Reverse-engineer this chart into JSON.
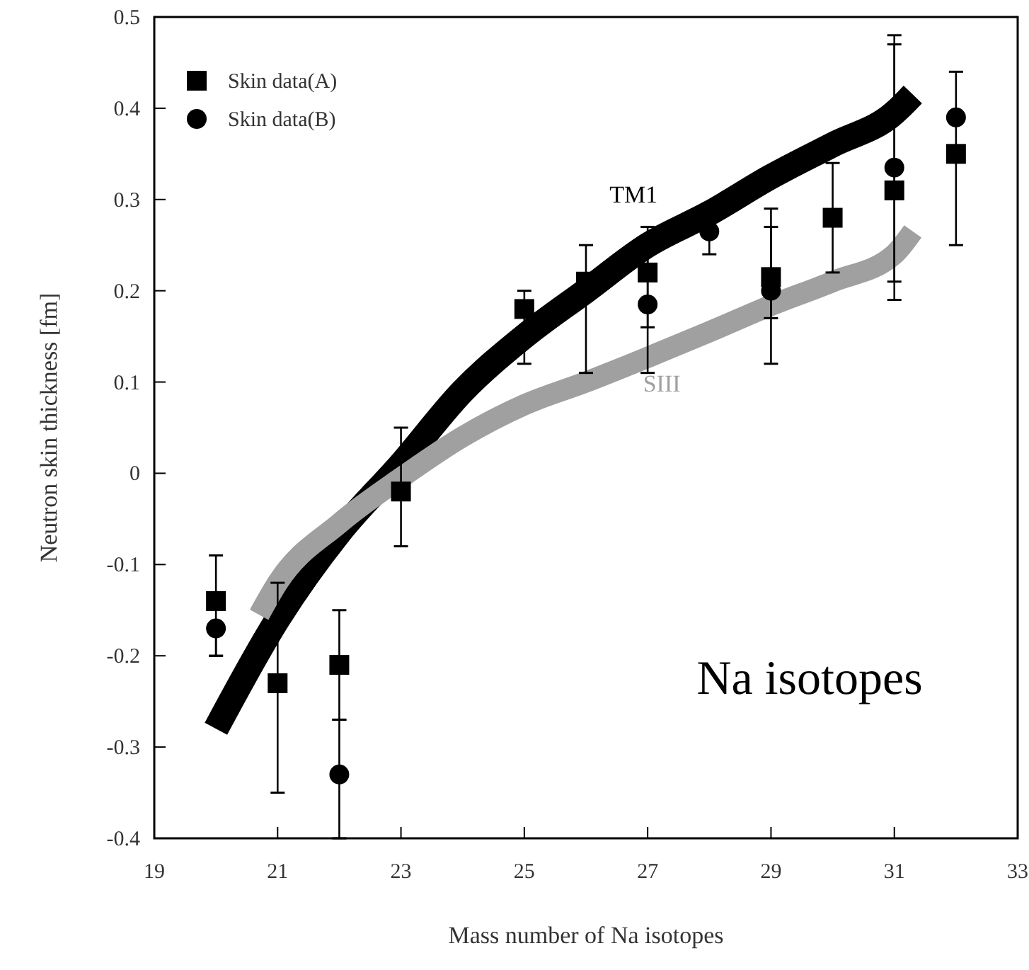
{
  "chart_data": {
    "type": "scatter",
    "xlabel": "Mass number of Na isotopes",
    "ylabel": "Neutron skin thickness  [fm]",
    "xlim": [
      19,
      33
    ],
    "xticks": [
      19,
      21,
      23,
      25,
      27,
      29,
      31,
      33
    ],
    "ylim": [
      -0.4,
      0.5
    ],
    "yticks": [
      -0.4,
      -0.3,
      -0.2,
      -0.1,
      0,
      0.1,
      0.2,
      0.3,
      0.4,
      0.5
    ],
    "legend": "top left",
    "grid": false,
    "annotations": [
      "Na isotopes"
    ],
    "series": [
      {
        "type": "line",
        "name": "TM1",
        "color": "#000000",
        "x": [
          20,
          21,
          22,
          23,
          24,
          25,
          26,
          27,
          28,
          29,
          30,
          31,
          31.3
        ],
        "values": [
          -0.28,
          -0.16,
          -0.065,
          0.01,
          0.09,
          0.15,
          0.2,
          0.25,
          0.285,
          0.325,
          0.36,
          0.395,
          0.415
        ]
      },
      {
        "type": "line",
        "name": "SIII",
        "color": "#a0a0a0",
        "x": [
          20.7,
          21,
          22,
          23,
          24,
          25,
          26,
          27,
          28,
          29,
          30,
          31,
          31.3
        ],
        "values": [
          -0.155,
          -0.12,
          -0.055,
          -0.005,
          0.04,
          0.075,
          0.1,
          0.127,
          0.155,
          0.184,
          0.21,
          0.24,
          0.265
        ]
      },
      {
        "type": "scatter",
        "name": "Skin data(A)",
        "color": "#000000",
        "marker": "square",
        "x": [
          20,
          21,
          22,
          23,
          25,
          26,
          27,
          28,
          29,
          30,
          31,
          32
        ],
        "values": [
          -0.14,
          -0.23,
          -0.21,
          -0.02,
          0.18,
          0.21,
          0.22,
          null,
          0.215,
          0.28,
          0.31,
          0.35
        ],
        "errors": [
          [
            -0.2,
            -0.09
          ],
          [
            -0.35,
            -0.12
          ],
          [
            -0.27,
            -0.15
          ],
          [
            -0.08,
            0.05
          ],
          [
            0.12,
            0.2
          ],
          [
            0.11,
            0.25
          ],
          [
            0.16,
            0.27
          ],
          null,
          [
            0.12,
            0.29
          ],
          [
            0.22,
            0.34
          ],
          [
            0.19,
            0.48
          ],
          [
            0.25,
            0.44
          ]
        ]
      },
      {
        "type": "scatter",
        "name": "Skin data(B)",
        "color": "#000000",
        "marker": "circle",
        "x": [
          20,
          22,
          27,
          28,
          29,
          31,
          32
        ],
        "values": [
          -0.17,
          -0.33,
          0.185,
          0.265,
          0.2,
          0.335,
          0.39
        ],
        "errors": [
          [
            -0.2,
            -0.17
          ],
          [
            -0.4,
            -0.27
          ],
          [
            0.11,
            0.26
          ],
          [
            0.24,
            0.265
          ],
          [
            0.17,
            0.27
          ],
          [
            0.21,
            0.47
          ],
          null
        ]
      }
    ]
  }
}
